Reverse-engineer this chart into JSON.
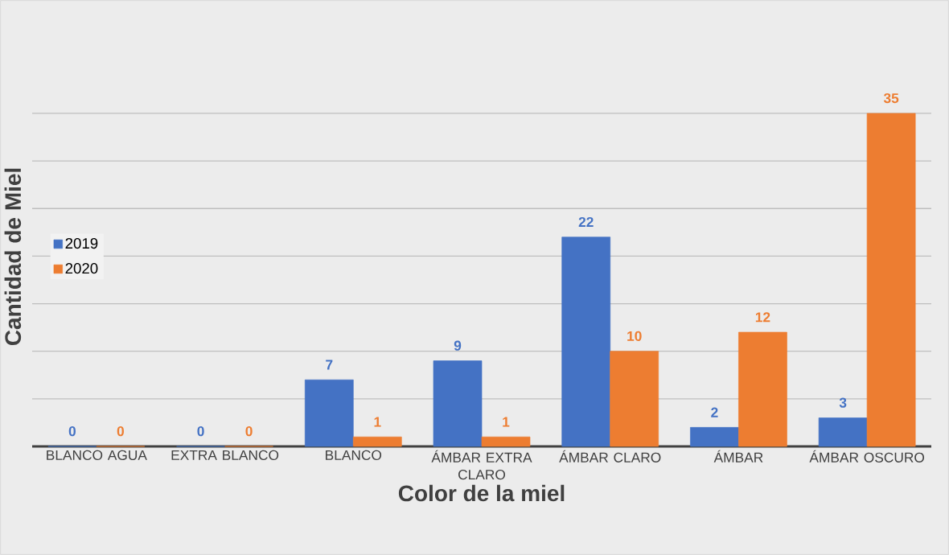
{
  "chart_data": {
    "type": "bar",
    "xlabel": "Color de la miel",
    "ylabel": "Cantidad de Miel",
    "categories": [
      "BLANCO AGUA",
      "EXTRA BLANCO",
      "BLANCO",
      "ÁMBAR EXTRA CLARO",
      "ÁMBAR CLARO",
      "ÁMBAR",
      "ÁMBAR OSCURO"
    ],
    "series": [
      {
        "name": "2019",
        "color": "#4472c4",
        "values": [
          0,
          0,
          7,
          9,
          22,
          2,
          3
        ]
      },
      {
        "name": "2020",
        "color": "#ed7d31",
        "values": [
          0,
          0,
          1,
          1,
          10,
          12,
          35
        ]
      }
    ],
    "tick_labels": "x",
    "grid": "y",
    "legend": "left",
    "data_labels": true
  }
}
